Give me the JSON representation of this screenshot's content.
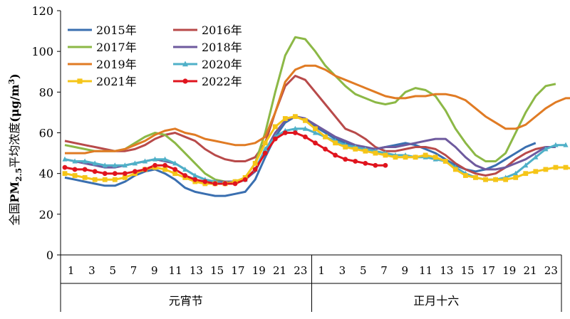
{
  "chart_data": {
    "type": "line",
    "ylabel_parts": [
      "全国",
      "PM",
      "2.5",
      "平均浓度",
      "(μg/m",
      "3",
      ")"
    ],
    "ylim": [
      0,
      120
    ],
    "yticks": [
      0,
      20,
      40,
      60,
      80,
      100,
      120
    ],
    "xticks": [
      "1",
      "3",
      "5",
      "7",
      "9",
      "11",
      "13",
      "15",
      "17",
      "19",
      "21",
      "23",
      "1",
      "3",
      "5",
      "7",
      "9",
      "11",
      "13",
      "15",
      "17",
      "19",
      "21",
      "23"
    ],
    "groups": [
      "元宵节",
      "正月十六"
    ],
    "legend_position": "top-left",
    "grid": false,
    "series": [
      {
        "name": "2015年",
        "color": "#3a6fb0",
        "marker": "none",
        "values": [
          38,
          37,
          36,
          35,
          34,
          34,
          36,
          39,
          41,
          42,
          40,
          37,
          33,
          31,
          30,
          29,
          29,
          30,
          31,
          37,
          48,
          58,
          65,
          68,
          67,
          63,
          60,
          57,
          55,
          53,
          52,
          52,
          53,
          54,
          55,
          54,
          52,
          50,
          47,
          44,
          42,
          41,
          42,
          44,
          47,
          50,
          53,
          55
        ]
      },
      {
        "name": "2016年",
        "color": "#b84a4a",
        "marker": "none",
        "values": [
          56,
          55,
          54,
          53,
          52,
          51,
          51,
          52,
          54,
          57,
          59,
          60,
          58,
          56,
          52,
          49,
          47,
          46,
          46,
          48,
          55,
          70,
          83,
          88,
          86,
          80,
          74,
          68,
          62,
          60,
          57,
          53,
          51,
          51,
          52,
          53,
          53,
          52,
          49,
          45,
          42,
          40,
          39,
          40,
          43,
          47,
          50,
          52,
          53
        ]
      },
      {
        "name": "2017年",
        "color": "#8cb846",
        "marker": "none",
        "values": [
          54,
          53,
          52,
          51,
          51,
          51,
          52,
          55,
          58,
          60,
          59,
          55,
          50,
          45,
          40,
          37,
          36,
          36,
          38,
          45,
          60,
          80,
          98,
          107,
          106,
          100,
          93,
          88,
          83,
          79,
          77,
          75,
          74,
          75,
          80,
          82,
          81,
          78,
          71,
          62,
          55,
          49,
          46,
          46,
          50,
          60,
          70,
          78,
          83,
          84
        ]
      },
      {
        "name": "2018年",
        "color": "#6e5a9e",
        "marker": "none",
        "values": [
          47,
          46,
          45,
          44,
          43,
          43,
          44,
          45,
          46,
          47,
          46,
          45,
          42,
          39,
          37,
          36,
          36,
          36,
          37,
          41,
          51,
          60,
          66,
          68,
          67,
          64,
          61,
          58,
          56,
          54,
          53,
          52,
          53,
          53,
          54,
          55,
          56,
          57,
          57,
          53,
          48,
          44,
          42,
          42,
          43,
          45,
          47,
          50,
          53,
          53
        ]
      },
      {
        "name": "2019年",
        "color": "#e07b24",
        "marker": "none",
        "values": [
          50,
          50,
          50,
          51,
          51,
          51,
          52,
          54,
          56,
          59,
          61,
          62,
          60,
          59,
          57,
          56,
          55,
          54,
          54,
          55,
          58,
          70,
          85,
          91,
          93,
          93,
          91,
          88,
          86,
          84,
          82,
          80,
          78,
          77,
          77,
          78,
          78,
          79,
          79,
          78,
          76,
          72,
          68,
          65,
          62,
          62,
          64,
          68,
          72,
          75,
          77,
          77
        ]
      },
      {
        "name": "2020年",
        "color": "#4fb0c8",
        "marker": "triangle",
        "values": [
          47,
          46,
          46,
          45,
          44,
          44,
          44,
          45,
          46,
          47,
          47,
          45,
          42,
          39,
          37,
          36,
          35,
          36,
          37,
          42,
          52,
          58,
          61,
          62,
          62,
          60,
          58,
          56,
          54,
          53,
          52,
          51,
          50,
          49,
          49,
          48,
          48,
          47,
          46,
          43,
          40,
          38,
          37,
          37,
          38,
          40,
          44,
          48,
          52,
          54,
          54
        ]
      },
      {
        "name": "2021年",
        "color": "#f5c518",
        "marker": "square",
        "values": [
          40,
          39,
          38,
          37,
          37,
          37,
          38,
          40,
          42,
          43,
          42,
          40,
          38,
          36,
          35,
          35,
          35,
          36,
          38,
          45,
          55,
          63,
          67,
          68,
          66,
          62,
          58,
          55,
          53,
          52,
          51,
          50,
          49,
          48,
          48,
          48,
          49,
          48,
          46,
          42,
          39,
          38,
          37,
          37,
          37,
          38,
          40,
          41,
          42,
          43,
          43,
          42
        ]
      },
      {
        "name": "2022年",
        "color": "#e0141e",
        "marker": "circle",
        "values": [
          43,
          42,
          42,
          41,
          40,
          40,
          40,
          41,
          42,
          44,
          44,
          42,
          39,
          37,
          36,
          35,
          35,
          35,
          37,
          42,
          50,
          57,
          60,
          60,
          58,
          55,
          52,
          49,
          47,
          46,
          45,
          44,
          44
        ]
      }
    ]
  }
}
